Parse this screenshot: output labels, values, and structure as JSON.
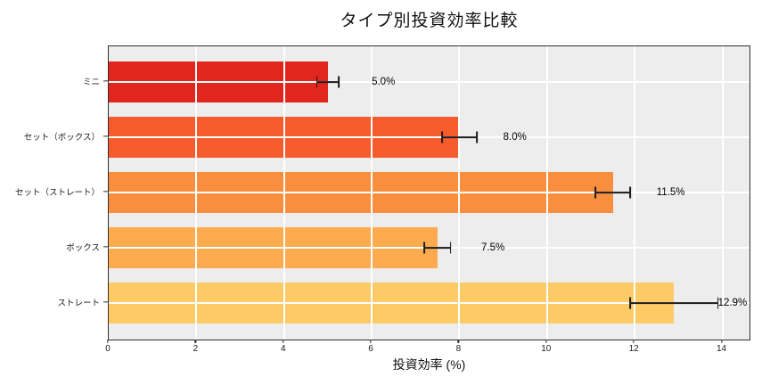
{
  "chart_data": {
    "type": "bar",
    "orientation": "horizontal",
    "title": "タイプ別投資効率比較",
    "xlabel": "投資効率 (%)",
    "categories": [
      "ミニ",
      "セット（ボックス）",
      "セット（ストレート）",
      "ボックス",
      "ストレート"
    ],
    "values": [
      5.0,
      8.0,
      11.5,
      7.5,
      12.9
    ],
    "errors": [
      0.25,
      0.4,
      0.4,
      0.3,
      1.0
    ],
    "value_labels": [
      "5.0%",
      "8.0%",
      "11.5%",
      "7.5%",
      "12.9%"
    ],
    "label_offset_units": 1.0,
    "bar_colors": [
      "#e3261d",
      "#f85c2c",
      "#fa8e3f",
      "#fcab4f",
      "#fdca66"
    ],
    "xlim": [
      0,
      14.66
    ],
    "xticks": [
      0,
      2,
      4,
      6,
      8,
      10,
      12,
      14
    ],
    "xtick_labels": [
      "0",
      "2",
      "4",
      "6",
      "8",
      "10",
      "12",
      "14"
    ],
    "grid": true,
    "grid_color": "#ffffff",
    "plot_background": "#ededed",
    "figure_background": "#ffffff",
    "error_bar_color": "#1c1c1c",
    "legend": "none"
  }
}
